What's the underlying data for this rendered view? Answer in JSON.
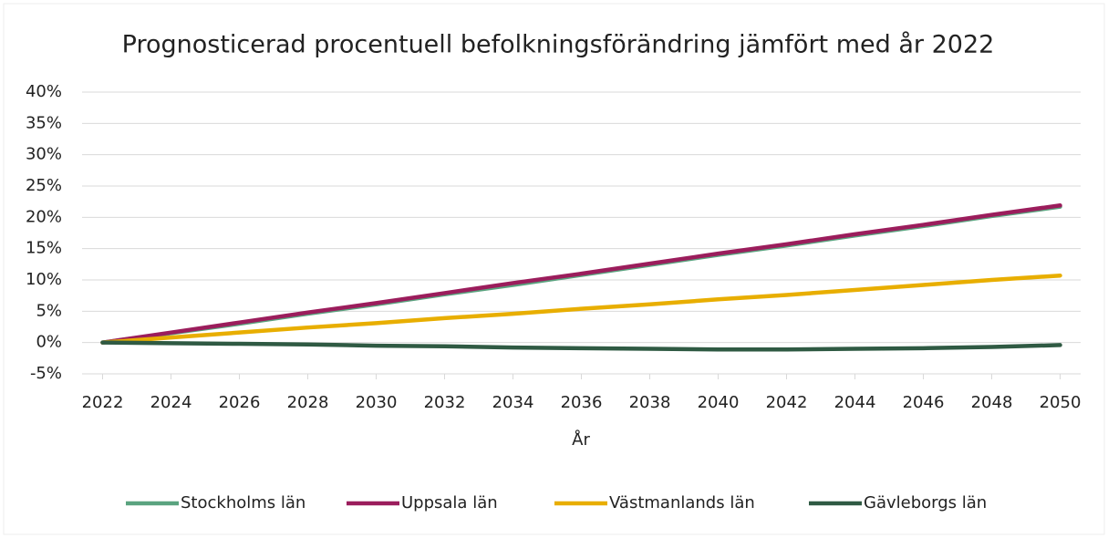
{
  "chart_data": {
    "type": "line",
    "title": "Prognosticerad procentuell befolkningsförändring jämfört med år 2022",
    "x_label": "År",
    "x": [
      2022,
      2024,
      2026,
      2028,
      2030,
      2032,
      2034,
      2036,
      2038,
      2040,
      2042,
      2044,
      2046,
      2048,
      2050
    ],
    "series": [
      {
        "name": "Stockholms län",
        "color": "#5aa37f",
        "values": [
          0,
          1.5,
          3.0,
          4.6,
          6.1,
          7.7,
          9.2,
          10.8,
          12.4,
          14.0,
          15.5,
          17.1,
          18.6,
          20.2,
          21.7
        ]
      },
      {
        "name": "Uppsala län",
        "color": "#9b1d5c",
        "values": [
          0,
          1.6,
          3.2,
          4.8,
          6.3,
          7.9,
          9.5,
          11.0,
          12.6,
          14.2,
          15.7,
          17.3,
          18.8,
          20.4,
          21.9
        ]
      },
      {
        "name": "Västmanlands län",
        "color": "#e8ae00",
        "values": [
          0,
          0.8,
          1.6,
          2.4,
          3.1,
          3.9,
          4.6,
          5.4,
          6.1,
          6.9,
          7.6,
          8.4,
          9.2,
          10.0,
          10.7
        ]
      },
      {
        "name": "Gävleborgs län",
        "color": "#2f5a43",
        "values": [
          0,
          -0.1,
          -0.2,
          -0.3,
          -0.5,
          -0.6,
          -0.8,
          -0.9,
          -1.0,
          -1.1,
          -1.1,
          -1.0,
          -0.9,
          -0.7,
          -0.4
        ]
      }
    ],
    "xlim": [
      2021.4,
      2050.6
    ],
    "xticks": [
      2022,
      2024,
      2026,
      2028,
      2030,
      2032,
      2034,
      2036,
      2038,
      2040,
      2042,
      2044,
      2046,
      2048,
      2050
    ],
    "ylim": [
      -5,
      40
    ],
    "yticks": [
      {
        "value": -5,
        "label": "-5%"
      },
      {
        "value": 0,
        "label": "0%"
      },
      {
        "value": 5,
        "label": "5%"
      },
      {
        "value": 10,
        "label": "10%"
      },
      {
        "value": 15,
        "label": "15%"
      },
      {
        "value": 20,
        "label": "20%"
      },
      {
        "value": 25,
        "label": "25%"
      },
      {
        "value": 30,
        "label": "30%"
      },
      {
        "value": 35,
        "label": "35%"
      },
      {
        "value": 40,
        "label": "40%"
      }
    ],
    "grid": true,
    "legend": "bottom"
  }
}
